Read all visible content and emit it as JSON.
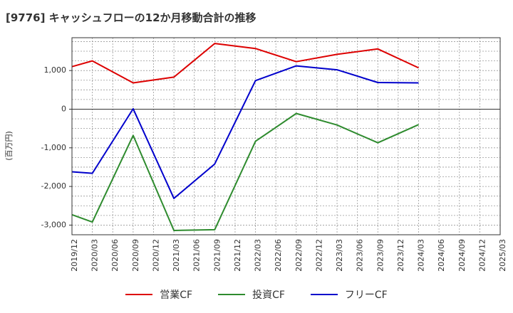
{
  "chart_data": {
    "type": "line",
    "title": "[9776]  キャッシュフローの12か月移動合計の推移",
    "ylabel": "(百万円)",
    "xlabel": "",
    "ylim": [
      -3250,
      1850
    ],
    "yticks": [
      1000,
      0,
      -1000,
      -2000,
      -3000
    ],
    "ytick_labels": [
      "1,000",
      "0",
      "-1,000",
      "-2,000",
      "-3,000"
    ],
    "x_ticks": [
      "2019/12",
      "2020/03",
      "2020/06",
      "2020/09",
      "2020/12",
      "2021/03",
      "2021/06",
      "2021/09",
      "2021/12",
      "2022/03",
      "2022/06",
      "2022/09",
      "2022/12",
      "2023/03",
      "2023/06",
      "2023/09",
      "2023/12",
      "2024/03",
      "2024/06",
      "2024/09",
      "2024/12",
      "2025/03"
    ],
    "grid": true,
    "legend_position": "bottom",
    "series": [
      {
        "name": "営業CF",
        "color": "#dd0000",
        "x": [
          "2019/12",
          "2020/03",
          "2020/09",
          "2021/03",
          "2021/09",
          "2022/03",
          "2022/09",
          "2023/03",
          "2023/09",
          "2024/03"
        ],
        "values": [
          1100,
          1250,
          680,
          830,
          1700,
          1570,
          1230,
          1420,
          1560,
          1070
        ]
      },
      {
        "name": "投資CF",
        "color": "#2e8b2e",
        "x": [
          "2019/12",
          "2020/03",
          "2020/09",
          "2021/03",
          "2021/09",
          "2022/03",
          "2022/09",
          "2023/03",
          "2023/09",
          "2024/03"
        ],
        "values": [
          -2730,
          -2920,
          -680,
          -3140,
          -3120,
          -830,
          -110,
          -410,
          -870,
          -400
        ]
      },
      {
        "name": "フリーCF",
        "color": "#0000cc",
        "x": [
          "2019/12",
          "2020/03",
          "2020/09",
          "2021/03",
          "2021/09",
          "2022/03",
          "2022/09",
          "2023/03",
          "2023/09",
          "2024/03"
        ],
        "values": [
          -1620,
          -1660,
          10,
          -2310,
          -1420,
          740,
          1120,
          1020,
          690,
          680
        ]
      }
    ]
  }
}
